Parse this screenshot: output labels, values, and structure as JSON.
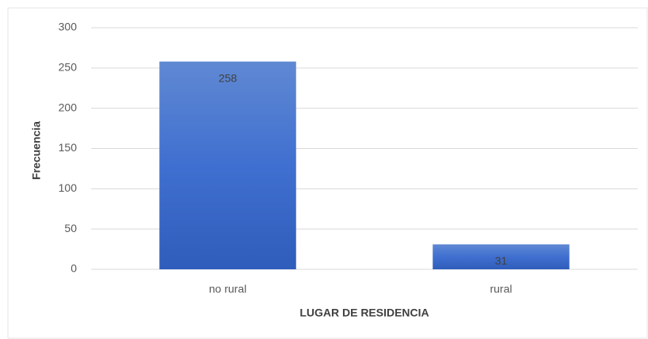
{
  "chart_data": {
    "type": "bar",
    "x_label": "LUGAR DE RESIDENCIA",
    "y_label": "Frecuencia",
    "categories": [
      "no rural",
      "rural"
    ],
    "values": [
      258,
      31
    ],
    "color": "#3d6cc8",
    "ylim": [
      0,
      300
    ],
    "yticks": [
      0,
      50,
      100,
      150,
      200,
      250,
      300
    ],
    "grid": true
  }
}
